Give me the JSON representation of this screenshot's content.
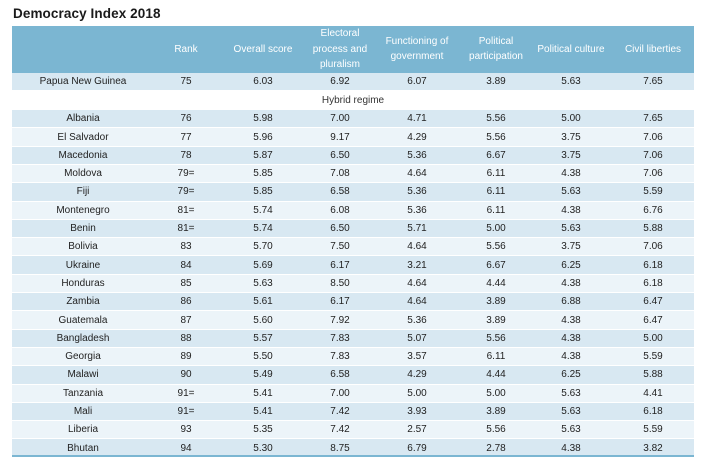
{
  "title": "Democracy Index 2018",
  "colors": {
    "header_bg": "#7bb6d2",
    "row_shade": "#d8e8f2",
    "row_plain": "#ecf4f9"
  },
  "columns": [
    "",
    "Rank",
    "Overall score",
    "Electoral process and pluralism",
    "Functioning of government",
    "Political participation",
    "Political culture",
    "Civil liberties"
  ],
  "rows_top": [
    [
      "Papua New Guinea",
      "75",
      "6.03",
      "6.92",
      "6.07",
      "3.89",
      "5.63",
      "7.65"
    ]
  ],
  "section_label": "Hybrid regime",
  "rows": [
    [
      "Albania",
      "76",
      "5.98",
      "7.00",
      "4.71",
      "5.56",
      "5.00",
      "7.65"
    ],
    [
      "El Salvador",
      "77",
      "5.96",
      "9.17",
      "4.29",
      "5.56",
      "3.75",
      "7.06"
    ],
    [
      "Macedonia",
      "78",
      "5.87",
      "6.50",
      "5.36",
      "6.67",
      "3.75",
      "7.06"
    ],
    [
      "Moldova",
      "79=",
      "5.85",
      "7.08",
      "4.64",
      "6.11",
      "4.38",
      "7.06"
    ],
    [
      "Fiji",
      "79=",
      "5.85",
      "6.58",
      "5.36",
      "6.11",
      "5.63",
      "5.59"
    ],
    [
      "Montenegro",
      "81=",
      "5.74",
      "6.08",
      "5.36",
      "6.11",
      "4.38",
      "6.76"
    ],
    [
      "Benin",
      "81=",
      "5.74",
      "6.50",
      "5.71",
      "5.00",
      "5.63",
      "5.88"
    ],
    [
      "Bolivia",
      "83",
      "5.70",
      "7.50",
      "4.64",
      "5.56",
      "3.75",
      "7.06"
    ],
    [
      "Ukraine",
      "84",
      "5.69",
      "6.17",
      "3.21",
      "6.67",
      "6.25",
      "6.18"
    ],
    [
      "Honduras",
      "85",
      "5.63",
      "8.50",
      "4.64",
      "4.44",
      "4.38",
      "6.18"
    ],
    [
      "Zambia",
      "86",
      "5.61",
      "6.17",
      "4.64",
      "3.89",
      "6.88",
      "6.47"
    ],
    [
      "Guatemala",
      "87",
      "5.60",
      "7.92",
      "5.36",
      "3.89",
      "4.38",
      "6.47"
    ],
    [
      "Bangladesh",
      "88",
      "5.57",
      "7.83",
      "5.07",
      "5.56",
      "4.38",
      "5.00"
    ],
    [
      "Georgia",
      "89",
      "5.50",
      "7.83",
      "3.57",
      "6.11",
      "4.38",
      "5.59"
    ],
    [
      "Malawi",
      "90",
      "5.49",
      "6.58",
      "4.29",
      "4.44",
      "6.25",
      "5.88"
    ],
    [
      "Tanzania",
      "91=",
      "5.41",
      "7.00",
      "5.00",
      "5.00",
      "5.63",
      "4.41"
    ],
    [
      "Mali",
      "91=",
      "5.41",
      "7.42",
      "3.93",
      "3.89",
      "5.63",
      "6.18"
    ],
    [
      "Liberia",
      "93",
      "5.35",
      "7.42",
      "2.57",
      "5.56",
      "5.63",
      "5.59"
    ],
    [
      "Bhutan",
      "94",
      "5.30",
      "8.75",
      "6.79",
      "2.78",
      "4.38",
      "3.82"
    ]
  ]
}
